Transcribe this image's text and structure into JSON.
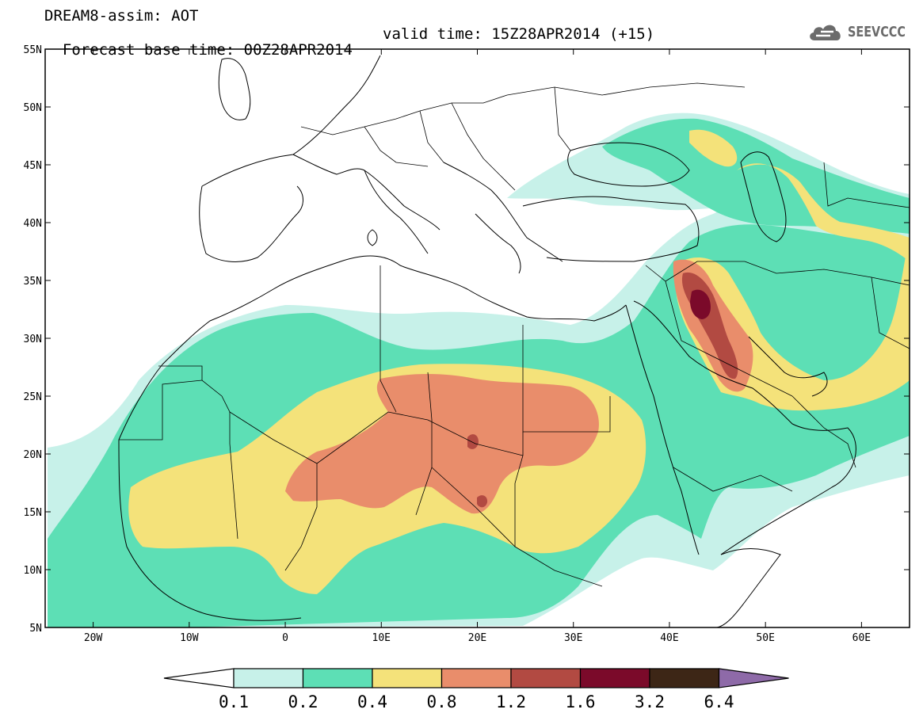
{
  "header": {
    "line1": "DREAM8-assim: AOT",
    "line2_base": "Forecast base time: 00Z28APR2014",
    "line2_valid": "valid time: 15Z28APR2014 (+15)"
  },
  "logo": {
    "text": "SEEVCCC",
    "icon": "cloud-logo-icon",
    "color": "#6b6b6b"
  },
  "map": {
    "lon_range": [
      -25,
      65
    ],
    "lat_range": [
      5,
      55
    ],
    "lon_ticks": [
      {
        "value": -20,
        "label": "20W"
      },
      {
        "value": -10,
        "label": "10W"
      },
      {
        "value": 0,
        "label": "0"
      },
      {
        "value": 10,
        "label": "10E"
      },
      {
        "value": 20,
        "label": "20E"
      },
      {
        "value": 30,
        "label": "30E"
      },
      {
        "value": 40,
        "label": "40E"
      },
      {
        "value": 50,
        "label": "50E"
      },
      {
        "value": 60,
        "label": "60E"
      }
    ],
    "lat_ticks": [
      {
        "value": 55,
        "label": "55N"
      },
      {
        "value": 50,
        "label": "50N"
      },
      {
        "value": 45,
        "label": "45N"
      },
      {
        "value": 40,
        "label": "40N"
      },
      {
        "value": 35,
        "label": "35N"
      },
      {
        "value": 30,
        "label": "30N"
      },
      {
        "value": 25,
        "label": "25N"
      },
      {
        "value": 20,
        "label": "20N"
      },
      {
        "value": 15,
        "label": "15N"
      },
      {
        "value": 10,
        "label": "10N"
      },
      {
        "value": 5,
        "label": "5N"
      }
    ]
  },
  "colorbar": {
    "colors": [
      "#c7f1e9",
      "#5ddfb5",
      "#f4e27a",
      "#e98d6b",
      "#b24a42",
      "#7b0a2a",
      "#3d2616",
      "#8e6aa8"
    ],
    "labels": [
      "0.1",
      "0.2",
      "0.4",
      "0.8",
      "1.2",
      "1.6",
      "3.2",
      "6.4"
    ]
  }
}
